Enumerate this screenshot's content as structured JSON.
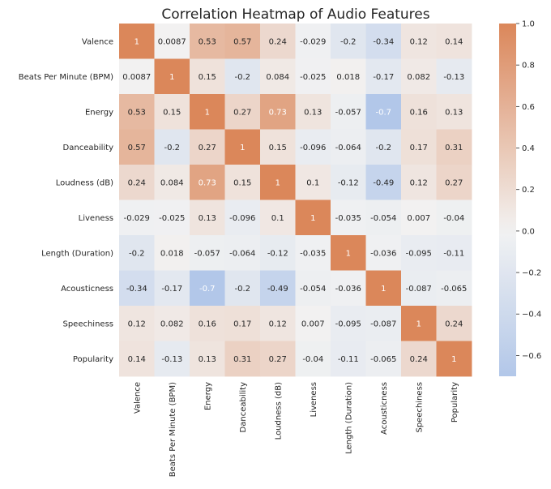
{
  "chart_data": {
    "type": "heatmap",
    "title": "Correlation Heatmap of Audio Features",
    "rows": [
      "Valence",
      "Beats Per Minute (BPM)",
      "Energy",
      "Danceability",
      "Loudness (dB)",
      "Liveness",
      "Length (Duration)",
      "Acousticness",
      "Speechiness",
      "Popularity"
    ],
    "columns": [
      "Valence",
      "Beats Per Minute (BPM)",
      "Energy",
      "Danceability",
      "Loudness (dB)",
      "Liveness",
      "Length (Duration)",
      "Acousticness",
      "Speechiness",
      "Popularity"
    ],
    "values": [
      [
        1,
        0.0087,
        0.53,
        0.57,
        0.24,
        -0.029,
        -0.2,
        -0.34,
        0.12,
        0.14
      ],
      [
        0.0087,
        1,
        0.15,
        -0.2,
        0.084,
        -0.025,
        0.018,
        -0.17,
        0.082,
        -0.13
      ],
      [
        0.53,
        0.15,
        1,
        0.27,
        0.73,
        0.13,
        -0.057,
        -0.7,
        0.16,
        0.13
      ],
      [
        0.57,
        -0.2,
        0.27,
        1,
        0.15,
        -0.096,
        -0.064,
        -0.2,
        0.17,
        0.31
      ],
      [
        0.24,
        0.084,
        0.73,
        0.15,
        1,
        0.1,
        -0.12,
        -0.49,
        0.12,
        0.27
      ],
      [
        -0.029,
        -0.025,
        0.13,
        -0.096,
        0.1,
        1,
        -0.035,
        -0.054,
        0.007,
        -0.04
      ],
      [
        -0.2,
        0.018,
        -0.057,
        -0.064,
        -0.12,
        -0.035,
        1,
        -0.036,
        -0.095,
        -0.11
      ],
      [
        -0.34,
        -0.17,
        -0.7,
        -0.2,
        -0.49,
        -0.054,
        -0.036,
        1,
        -0.087,
        -0.065
      ],
      [
        0.12,
        0.082,
        0.16,
        0.17,
        0.12,
        0.007,
        -0.095,
        -0.087,
        1,
        0.24
      ],
      [
        0.14,
        -0.13,
        0.13,
        0.31,
        0.27,
        -0.04,
        -0.11,
        -0.065,
        0.24,
        1
      ]
    ],
    "value_labels": [
      [
        "1",
        "0.0087",
        "0.53",
        "0.57",
        "0.24",
        "-0.029",
        "-0.2",
        "-0.34",
        "0.12",
        "0.14"
      ],
      [
        "0.0087",
        "1",
        "0.15",
        "-0.2",
        "0.084",
        "-0.025",
        "0.018",
        "-0.17",
        "0.082",
        "-0.13"
      ],
      [
        "0.53",
        "0.15",
        "1",
        "0.27",
        "0.73",
        "0.13",
        "-0.057",
        "-0.7",
        "0.16",
        "0.13"
      ],
      [
        "0.57",
        "-0.2",
        "0.27",
        "1",
        "0.15",
        "-0.096",
        "-0.064",
        "-0.2",
        "0.17",
        "0.31"
      ],
      [
        "0.24",
        "0.084",
        "0.73",
        "0.15",
        "1",
        "0.1",
        "-0.12",
        "-0.49",
        "0.12",
        "0.27"
      ],
      [
        "-0.029",
        "-0.025",
        "0.13",
        "-0.096",
        "0.1",
        "1",
        "-0.035",
        "-0.054",
        "0.007",
        "-0.04"
      ],
      [
        "-0.2",
        "0.018",
        "-0.057",
        "-0.064",
        "-0.12",
        "-0.035",
        "1",
        "-0.036",
        "-0.095",
        "-0.11"
      ],
      [
        "-0.34",
        "-0.17",
        "-0.7",
        "-0.2",
        "-0.49",
        "-0.054",
        "-0.036",
        "1",
        "-0.087",
        "-0.065"
      ],
      [
        "0.12",
        "0.082",
        "0.16",
        "0.17",
        "0.12",
        "0.007",
        "-0.095",
        "-0.087",
        "1",
        "0.24"
      ],
      [
        "0.14",
        "-0.13",
        "0.13",
        "0.31",
        "0.27",
        "-0.04",
        "-0.11",
        "-0.065",
        "0.24",
        "1"
      ]
    ],
    "color_range": [
      -0.7,
      1.0
    ],
    "colormap": {
      "negative": "#97b5e5",
      "center": "#f2f2f2",
      "positive": "#db875a"
    },
    "colorbar": {
      "ticks": [
        1.0,
        0.8,
        0.6,
        0.4,
        0.2,
        0.0,
        -0.2,
        -0.4,
        -0.6
      ],
      "tick_labels": [
        "1.0",
        "0.8",
        "0.6",
        "0.4",
        "0.2",
        "0.0",
        "−0.2",
        "−0.4",
        "−0.6"
      ],
      "placement": "right"
    },
    "grid": false
  }
}
